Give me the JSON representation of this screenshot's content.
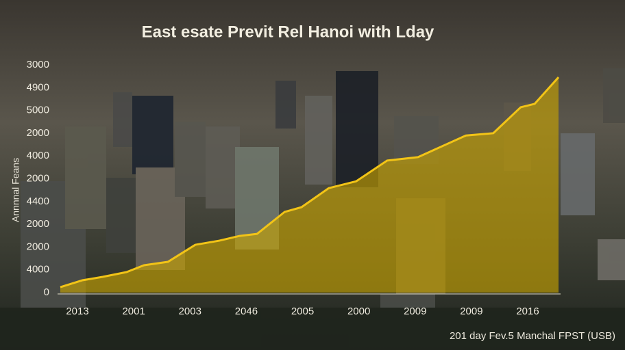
{
  "chart_data": {
    "type": "area",
    "title": "East esate Previt Rel Hanoi with Lday",
    "y_axis_label": "Annnnal Feans",
    "footer": "201 day Fev.5 Manchal FPST (USB)",
    "y_labels": [
      "3000",
      "4900",
      "5000",
      "2000",
      "4000",
      "2000",
      "4400",
      "2000",
      "2000",
      "4000",
      "0"
    ],
    "categories": [
      "2013",
      "2001",
      "2003",
      "2046",
      "2005",
      "2000",
      "2009",
      "2009",
      "2016"
    ],
    "xlim": [
      0,
      100
    ],
    "ylim": [
      0,
      100
    ],
    "x": [
      0,
      4.4,
      8.5,
      13.3,
      16.8,
      21.6,
      27.1,
      31.9,
      36,
      39.5,
      45,
      48.4,
      53.9,
      59.4,
      65.6,
      71.8,
      81.4,
      86.9,
      92.4,
      95.2,
      100
    ],
    "series": [
      {
        "color": "#f2c417",
        "fill": "#c9a400",
        "values": [
          2.4,
          5.4,
          6.9,
          9,
          12,
          13.5,
          21,
          22.8,
          24.9,
          25.8,
          35.4,
          37.5,
          45.9,
          48.9,
          58,
          59.5,
          69,
          70,
          81.4,
          82.9,
          94.6
        ]
      }
    ]
  }
}
